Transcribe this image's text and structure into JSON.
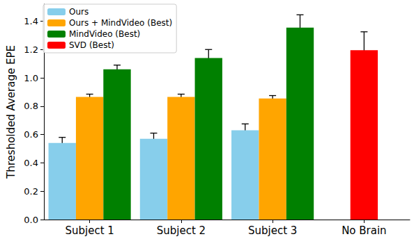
{
  "chart_data": {
    "type": "bar",
    "categories": [
      "Subject 1",
      "Subject 2",
      "Subject 3",
      "No Brain"
    ],
    "y_label": "Thresholded Average EPE",
    "ylim": [
      0,
      1.52
    ],
    "yticks": [
      {
        "value": 0,
        "label": "0.0"
      },
      {
        "value": 0.2,
        "label": "0.2"
      },
      {
        "value": 0.4,
        "label": "0.4"
      },
      {
        "value": 0.6,
        "label": "0.6"
      },
      {
        "value": 0.8,
        "label": "0.8"
      },
      {
        "value": 1,
        "label": "1.0"
      },
      {
        "value": 1.2,
        "label": "1.2"
      },
      {
        "value": 1.4,
        "label": "1.4"
      }
    ],
    "grid": false,
    "legend": "upper left",
    "series": [
      {
        "name": "Ours",
        "color": "#87ceeb",
        "values": [
          0.54,
          0.57,
          0.63,
          null
        ],
        "errors": [
          0.04,
          0.04,
          0.045,
          null
        ]
      },
      {
        "name": "Ours + MindVideo (Best)",
        "color": "#ffa500",
        "values": [
          0.865,
          0.865,
          0.855,
          null
        ],
        "errors": [
          0.02,
          0.02,
          0.02,
          null
        ]
      },
      {
        "name": "MindVideo (Best)",
        "color": "#008000",
        "values": [
          1.06,
          1.14,
          1.355,
          null
        ],
        "errors": [
          0.03,
          0.06,
          0.09,
          null
        ]
      },
      {
        "name": "SVD (Best)",
        "color": "#ff0000",
        "values": [
          null,
          null,
          null,
          1.195
        ],
        "errors": [
          null,
          null,
          null,
          0.13
        ]
      }
    ]
  }
}
